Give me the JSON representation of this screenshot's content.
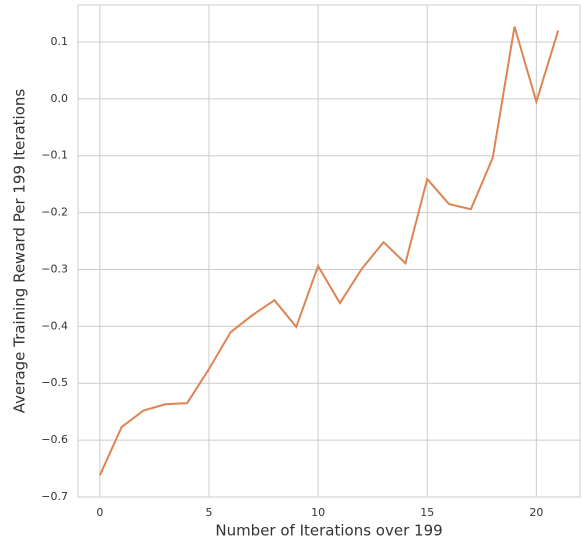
{
  "chart_data": {
    "type": "line",
    "xlabel": "Number of Iterations over 199",
    "ylabel": "Average Training Reward Per 199 Iterations",
    "x": [
      0,
      1,
      2,
      3,
      4,
      5,
      6,
      7,
      8,
      9,
      10,
      11,
      12,
      13,
      14,
      15,
      16,
      17,
      18,
      19,
      20,
      21
    ],
    "series": [
      {
        "color": "#dd8452",
        "values": [
          -0.662,
          -0.577,
          -0.548,
          -0.537,
          -0.535,
          -0.475,
          -0.41,
          -0.38,
          -0.354,
          -0.401,
          -0.294,
          -0.359,
          -0.299,
          -0.252,
          -0.289,
          -0.141,
          -0.185,
          -0.194,
          -0.104,
          0.127,
          -0.005,
          0.12
        ]
      }
    ],
    "xlim": [
      -1,
      22
    ],
    "xticks": [
      0,
      5,
      10,
      15,
      20
    ],
    "ylim": [
      -0.7,
      0.165
    ],
    "yticks": [
      {
        "value": -0.7,
        "label": "−0.7"
      },
      {
        "value": -0.6,
        "label": "−0.6"
      },
      {
        "value": -0.5,
        "label": "−0.5"
      },
      {
        "value": -0.4,
        "label": "−0.4"
      },
      {
        "value": -0.3,
        "label": "−0.3"
      },
      {
        "value": -0.2,
        "label": "−0.2"
      },
      {
        "value": -0.1,
        "label": "−0.1"
      },
      {
        "value": 0,
        "label": "0.0"
      },
      0.1
    ],
    "grid": true
  }
}
